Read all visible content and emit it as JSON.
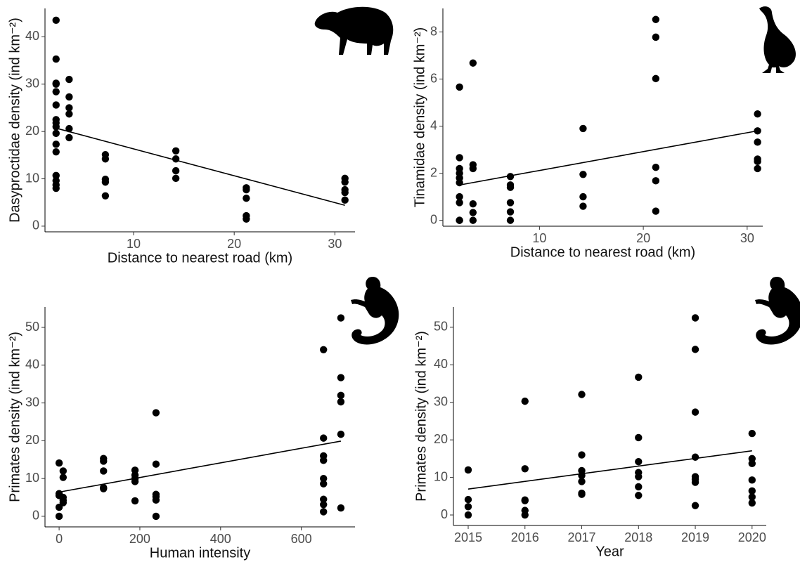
{
  "chart_data": [
    {
      "type": "scatter",
      "x_label": "Distance to nearest road (km)",
      "y_label": "Dasyproctidae density (ind km⁻²)",
      "color": "#000000",
      "x": [
        2.3,
        2.3,
        2.3,
        2.3,
        2.3,
        2.3,
        2.3,
        2.3,
        2.3,
        2.3,
        2.3,
        2.3,
        2.3,
        2.3,
        2.3,
        2.3,
        3.6,
        3.6,
        3.6,
        3.6,
        3.6,
        3.6,
        7.2,
        7.2,
        7.2,
        7.2,
        7.2,
        14.2,
        14.2,
        14.2,
        14.2,
        21.2,
        21.2,
        21.2,
        21.2,
        21.2,
        31,
        31,
        31,
        31,
        31
      ],
      "values": [
        43.5,
        35.3,
        30.2,
        30.0,
        28.4,
        25.6,
        22.5,
        21.8,
        21.0,
        19.6,
        17.3,
        15.7,
        10.7,
        9.6,
        8.7,
        8.0,
        31.0,
        27.3,
        25.0,
        23.7,
        20.6,
        18.7,
        15.1,
        14.2,
        9.9,
        9.3,
        6.4,
        15.9,
        14.2,
        11.7,
        10.1,
        8.1,
        7.7,
        5.9,
        2.2,
        1.5,
        10.1,
        9.3,
        7.7,
        7.1,
        5.5
      ],
      "trend_line": {
        "x": [
          2.3,
          31
        ],
        "values": [
          20.7,
          4.4
        ]
      },
      "xlim": [
        1.2,
        32
      ],
      "ylim": [
        -1.2,
        46
      ],
      "xticks": [
        10,
        20,
        30
      ],
      "yticks": [
        0,
        10,
        20,
        30,
        40
      ]
    },
    {
      "type": "scatter",
      "x_label": "Distance to nearest road (km)",
      "y_label": "Tinamidae density (ind km⁻²)",
      "color": "#000000",
      "x": [
        2.3,
        2.3,
        2.3,
        2.3,
        2.3,
        2.3,
        2.3,
        2.3,
        2.3,
        2.3,
        3.6,
        3.6,
        3.6,
        3.6,
        3.6,
        3.6,
        7.2,
        7.2,
        7.2,
        7.2,
        7.2,
        7.2,
        14.2,
        14.2,
        14.2,
        14.2,
        21.2,
        21.2,
        21.2,
        21.2,
        21.2,
        21.2,
        31,
        31,
        31,
        31,
        31,
        31
      ],
      "values": [
        5.66,
        2.66,
        2.2,
        2.0,
        1.8,
        1.6,
        1.0,
        0.75,
        0,
        0,
        6.68,
        2.36,
        2.2,
        0.7,
        0.33,
        0,
        1.86,
        1.5,
        1.4,
        0.75,
        0.36,
        0,
        3.9,
        1.95,
        1.0,
        0.6,
        8.53,
        7.78,
        6.02,
        2.25,
        1.68,
        0.39,
        4.52,
        3.8,
        3.32,
        2.6,
        2.5,
        2.2
      ],
      "trend_line": {
        "x": [
          2.3,
          31
        ],
        "values": [
          1.5,
          3.8
        ]
      },
      "xlim": [
        0.7,
        31.5
      ],
      "ylim": [
        -0.25,
        9
      ],
      "xticks": [
        10,
        20,
        30
      ],
      "yticks": [
        0,
        2,
        4,
        6,
        8
      ]
    },
    {
      "type": "scatter",
      "x_label": "Human intensity",
      "y_label": "Primates density (ind km⁻²)",
      "color": "#000000",
      "x": [
        0,
        0,
        0,
        0,
        0,
        10,
        10,
        10,
        10,
        10,
        110,
        110,
        110,
        110,
        110,
        188,
        188,
        188,
        188,
        188,
        240,
        240,
        240,
        240,
        240,
        240,
        655,
        655,
        655,
        655,
        655,
        655,
        655,
        655,
        655,
        698,
        698,
        698,
        698,
        698,
        698
      ],
      "values": [
        14.1,
        6.0,
        5.5,
        2.4,
        0,
        12.0,
        10.3,
        5.0,
        4.2,
        3.6,
        15.3,
        14.6,
        12.0,
        7.6,
        7.3,
        12.2,
        10.9,
        10.0,
        9.2,
        4.1,
        27.4,
        13.8,
        5.8,
        5.2,
        4.3,
        0,
        44.1,
        20.7,
        16.0,
        14.8,
        10.0,
        8.6,
        4.5,
        3.1,
        1.2,
        52.5,
        36.7,
        32.0,
        30.3,
        21.7,
        2.2
      ],
      "trend_line": {
        "x": [
          0,
          698
        ],
        "values": [
          6.4,
          19.9
        ]
      },
      "xlim": [
        -35,
        733
      ],
      "ylim": [
        -2.8,
        55.4
      ],
      "xticks": [
        0,
        200,
        400,
        600
      ],
      "yticks": [
        0,
        10,
        20,
        30,
        40,
        50
      ]
    },
    {
      "type": "scatter",
      "x_label": "Year",
      "y_label": "Primates density (ind km⁻²)",
      "color": "#000000",
      "x": [
        2015,
        2015,
        2015,
        2015,
        2016,
        2016,
        2016,
        2016,
        2016,
        2016,
        2017,
        2017,
        2017,
        2017,
        2017,
        2017,
        2017,
        2018,
        2018,
        2018,
        2018,
        2018,
        2018,
        2018,
        2019,
        2019,
        2019,
        2019,
        2019,
        2019,
        2019,
        2019,
        2020,
        2020,
        2020,
        2020,
        2020,
        2020,
        2020
      ],
      "values": [
        12,
        4.1,
        2.2,
        0,
        30.3,
        12.3,
        4.0,
        3.8,
        1.2,
        0,
        32.1,
        16,
        11.8,
        10.5,
        8.9,
        5.8,
        5.5,
        36.7,
        20.6,
        14.2,
        11.3,
        10.2,
        7.5,
        5.2,
        52.5,
        44.1,
        27.4,
        15.4,
        10.2,
        9.5,
        8.7,
        2.5,
        21.7,
        15,
        13.7,
        9.3,
        6.4,
        4.8,
        3.2
      ],
      "trend_line": {
        "x": [
          2015,
          2020
        ],
        "values": [
          6.9,
          17.1
        ]
      },
      "xlim": [
        2014.74,
        2020.25
      ],
      "ylim": [
        -2.8,
        55.4
      ],
      "xticks": [
        2015,
        2016,
        2017,
        2018,
        2019,
        2020
      ],
      "yticks": [
        0,
        10,
        20,
        30,
        40,
        50
      ]
    }
  ]
}
